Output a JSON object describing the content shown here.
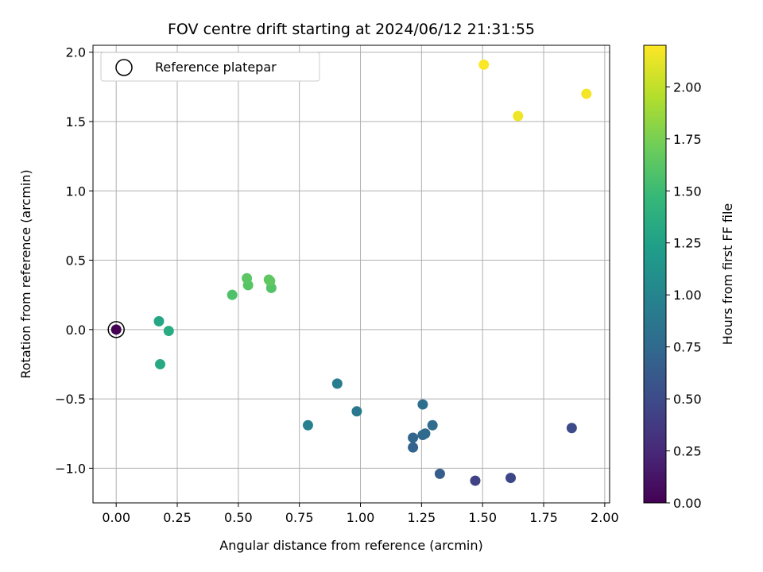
{
  "chart_data": {
    "type": "scatter",
    "title": "FOV centre drift starting at 2024/06/12 21:31:55",
    "xlabel": "Angular distance from reference (arcmin)",
    "ylabel": "Rotation from reference (arcmin)",
    "xlim": [
      -0.095,
      2.02
    ],
    "ylim": [
      -1.25,
      2.05
    ],
    "xticks": [
      0.0,
      0.25,
      0.5,
      0.75,
      1.0,
      1.25,
      1.5,
      1.75,
      2.0
    ],
    "xtick_labels": [
      "0.00",
      "0.25",
      "0.50",
      "0.75",
      "1.00",
      "1.25",
      "1.50",
      "1.75",
      "2.00"
    ],
    "yticks": [
      -1.0,
      -0.5,
      0.0,
      0.5,
      1.0,
      1.5,
      2.0
    ],
    "ytick_labels": [
      "−1.0",
      "−0.5",
      "0.0",
      "0.5",
      "1.0",
      "1.5",
      "2.0"
    ],
    "grid": true,
    "legend": {
      "placement": "top-left",
      "entries": [
        "Reference platepar"
      ]
    },
    "colorbar": {
      "label": "Hours from first FF file",
      "range": [
        0.0,
        2.2
      ],
      "ticks": [
        0.0,
        0.25,
        0.5,
        0.75,
        1.0,
        1.25,
        1.5,
        1.75,
        2.0
      ],
      "tick_labels": [
        "0.00",
        "0.25",
        "0.50",
        "0.75",
        "1.00",
        "1.25",
        "1.50",
        "1.75",
        "2.00"
      ],
      "colormap": "viridis"
    },
    "reference_point": {
      "x": 0.0,
      "y": 0.0
    },
    "points": [
      {
        "x": 0.0,
        "y": 0.0,
        "hours": 0.0
      },
      {
        "x": 1.47,
        "y": -1.09,
        "hours": 0.43
      },
      {
        "x": 1.615,
        "y": -1.07,
        "hours": 0.46
      },
      {
        "x": 1.865,
        "y": -0.71,
        "hours": 0.5
      },
      {
        "x": 1.325,
        "y": -1.04,
        "hours": 0.64
      },
      {
        "x": 1.215,
        "y": -0.85,
        "hours": 0.7
      },
      {
        "x": 1.215,
        "y": -0.78,
        "hours": 0.72
      },
      {
        "x": 1.255,
        "y": -0.76,
        "hours": 0.74
      },
      {
        "x": 1.265,
        "y": -0.75,
        "hours": 0.76
      },
      {
        "x": 1.295,
        "y": -0.69,
        "hours": 0.77
      },
      {
        "x": 1.255,
        "y": -0.54,
        "hours": 0.8
      },
      {
        "x": 0.985,
        "y": -0.59,
        "hours": 0.88
      },
      {
        "x": 0.905,
        "y": -0.39,
        "hours": 0.93
      },
      {
        "x": 0.785,
        "y": -0.69,
        "hours": 0.97
      },
      {
        "x": 0.175,
        "y": 0.06,
        "hours": 1.3
      },
      {
        "x": 0.18,
        "y": -0.25,
        "hours": 1.32
      },
      {
        "x": 0.215,
        "y": -0.01,
        "hours": 1.35
      },
      {
        "x": 0.475,
        "y": 0.25,
        "hours": 1.58
      },
      {
        "x": 0.635,
        "y": 0.3,
        "hours": 1.6
      },
      {
        "x": 0.54,
        "y": 0.32,
        "hours": 1.62
      },
      {
        "x": 0.535,
        "y": 0.37,
        "hours": 1.63
      },
      {
        "x": 0.625,
        "y": 0.36,
        "hours": 1.64
      },
      {
        "x": 0.63,
        "y": 0.35,
        "hours": 1.65
      },
      {
        "x": 1.645,
        "y": 1.54,
        "hours": 2.15
      },
      {
        "x": 1.925,
        "y": 1.7,
        "hours": 2.17
      },
      {
        "x": 1.505,
        "y": 1.91,
        "hours": 2.19
      }
    ]
  }
}
